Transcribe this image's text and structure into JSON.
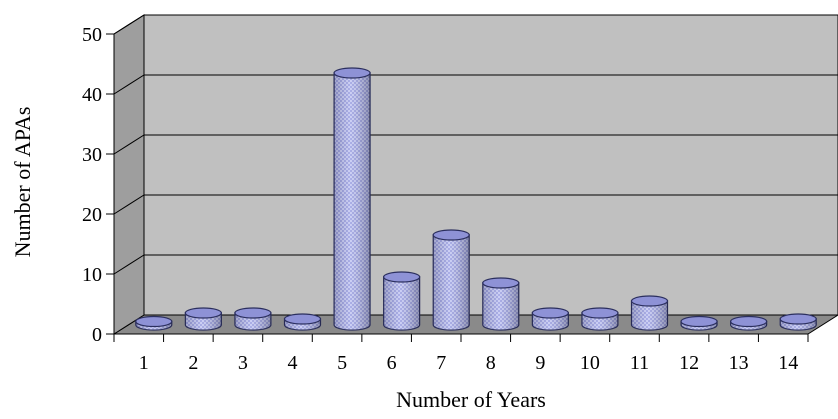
{
  "chart_data": {
    "type": "bar",
    "style": "3d-cylinder",
    "categories": [
      "1",
      "2",
      "3",
      "4",
      "5",
      "6",
      "7",
      "8",
      "9",
      "10",
      "11",
      "12",
      "13",
      "14"
    ],
    "values": [
      0,
      2,
      2,
      1,
      42,
      8,
      15,
      7,
      2,
      2,
      4,
      0,
      0,
      1
    ],
    "xlabel": "Number of Years",
    "ylabel": "Number of APAs",
    "ylim": [
      0,
      50
    ],
    "yticks": [
      "0",
      "10",
      "20",
      "30",
      "40",
      "50"
    ],
    "grid": true,
    "legend": "none",
    "colors": {
      "bar_fill": "#b9bdf0",
      "bar_top": "#8e92d6",
      "bar_stroke": "#2b2f5e",
      "back_wall": "#c0c0c0",
      "side_wall": "#9e9e9e",
      "floor": "#8a8a8a",
      "gridline": "#000000"
    }
  }
}
